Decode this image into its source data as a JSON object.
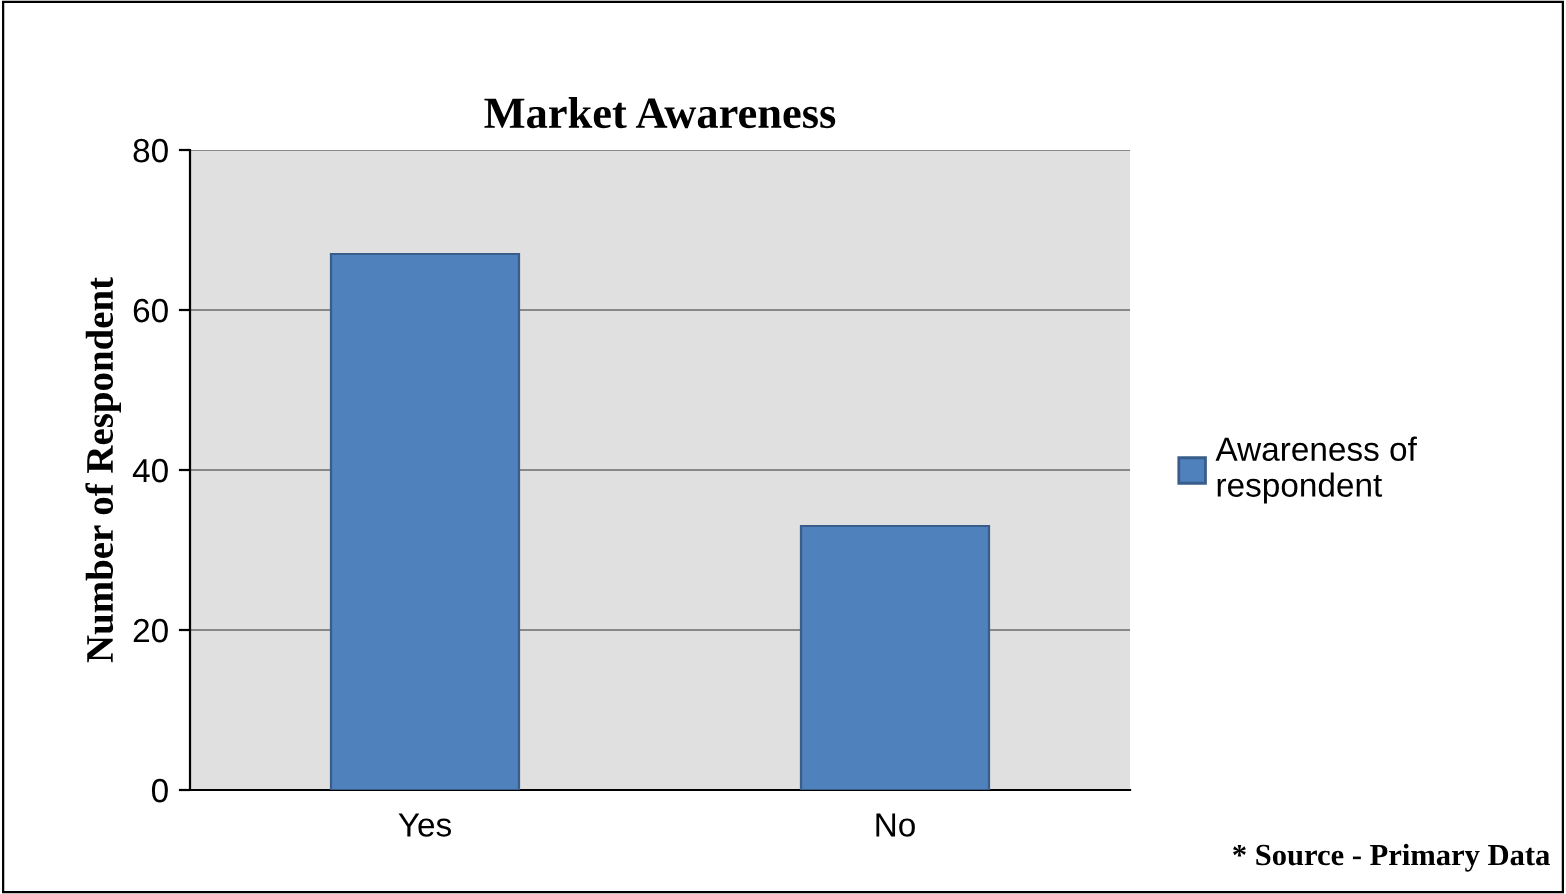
{
  "chart_data": {
    "type": "bar",
    "title": "Market Awareness",
    "ylabel": "Number of Respondent",
    "categories": [
      "Yes",
      "No"
    ],
    "series": [
      {
        "name": "Awareness of respondent",
        "color": "#4f81bd",
        "values": [
          67,
          33
        ]
      }
    ],
    "ylim": [
      0,
      80
    ],
    "yticks": [
      0,
      20,
      40,
      60,
      80
    ],
    "grid": "y",
    "legend": "right",
    "annotations": [
      "* Source - Primary Data"
    ]
  }
}
